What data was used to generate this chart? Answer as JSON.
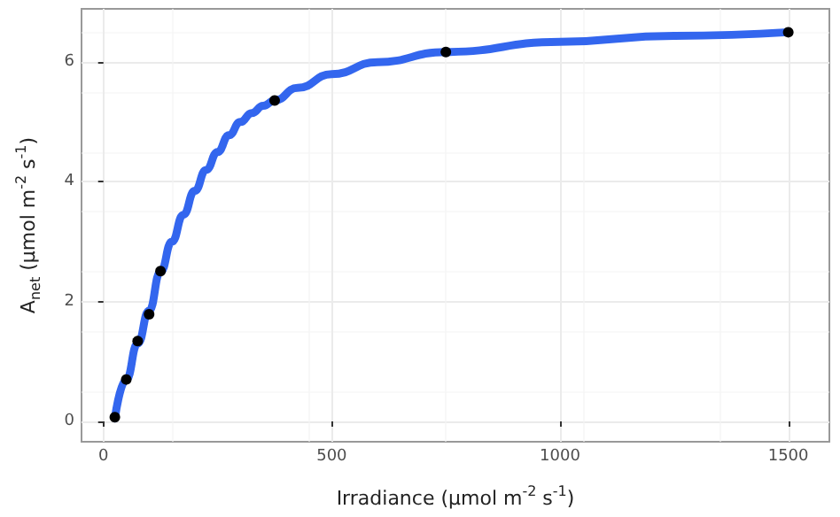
{
  "chart_data": {
    "type": "scatter",
    "xlabel": "Irradiance (μmol m$^{-2}$ s$^{-1}$)",
    "ylabel": "A$_{net}$ (μmol m$^{-2}$ s$^{-1}$)",
    "xlim": [
      -48,
      1590
    ],
    "ylim": [
      -0.34,
      6.89
    ],
    "xticks": [
      0,
      500,
      1000,
      1500
    ],
    "yticks": [
      0,
      2,
      4,
      6
    ],
    "grid": true,
    "series": [
      {
        "type": "line",
        "color": "#3366ee",
        "marker": "none",
        "x": [
          25,
          50,
          75,
          100,
          125,
          150,
          175,
          200,
          225,
          250,
          275,
          300,
          325,
          350,
          375,
          425,
          500,
          600,
          750,
          1000,
          1250,
          1500
        ],
        "values": [
          0.05,
          0.7,
          1.3,
          1.85,
          2.5,
          3.0,
          3.45,
          3.85,
          4.2,
          4.5,
          4.78,
          5.0,
          5.15,
          5.27,
          5.36,
          5.57,
          5.8,
          6.0,
          6.17,
          6.34,
          6.44,
          6.5
        ]
      },
      {
        "color": "#000000",
        "marker": "circle",
        "x": [
          25,
          50,
          75,
          100,
          125,
          375,
          750,
          1500
        ],
        "values": [
          0.07,
          0.7,
          1.34,
          1.79,
          2.51,
          5.36,
          6.17,
          6.5
        ]
      }
    ]
  }
}
